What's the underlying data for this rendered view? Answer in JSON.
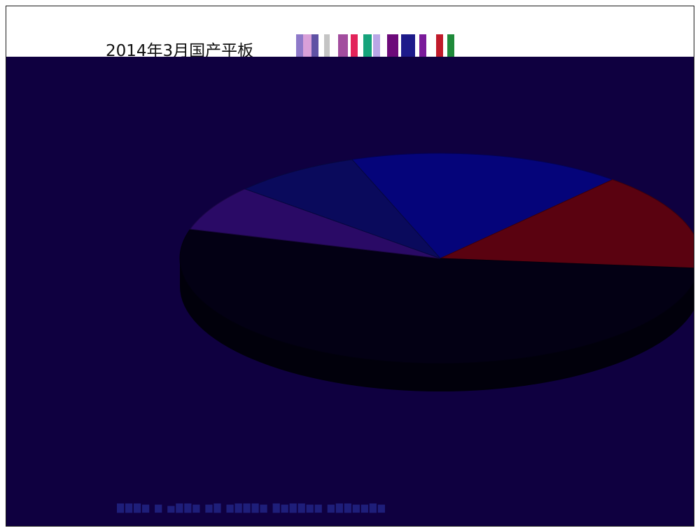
{
  "chart_data": {
    "type": "pie",
    "title": "2014年3月国产平板",
    "slices": [
      {
        "color": "#05047a",
        "value": 17
      },
      {
        "color": "#5a0210",
        "value": 15
      },
      {
        "color": "#030014",
        "value": 53
      },
      {
        "color": "#2a0a66",
        "value": 7
      },
      {
        "color": "#0a0a5c",
        "value": 8
      }
    ],
    "style": "3d-exploded",
    "background_color": "#0f0040"
  }
}
